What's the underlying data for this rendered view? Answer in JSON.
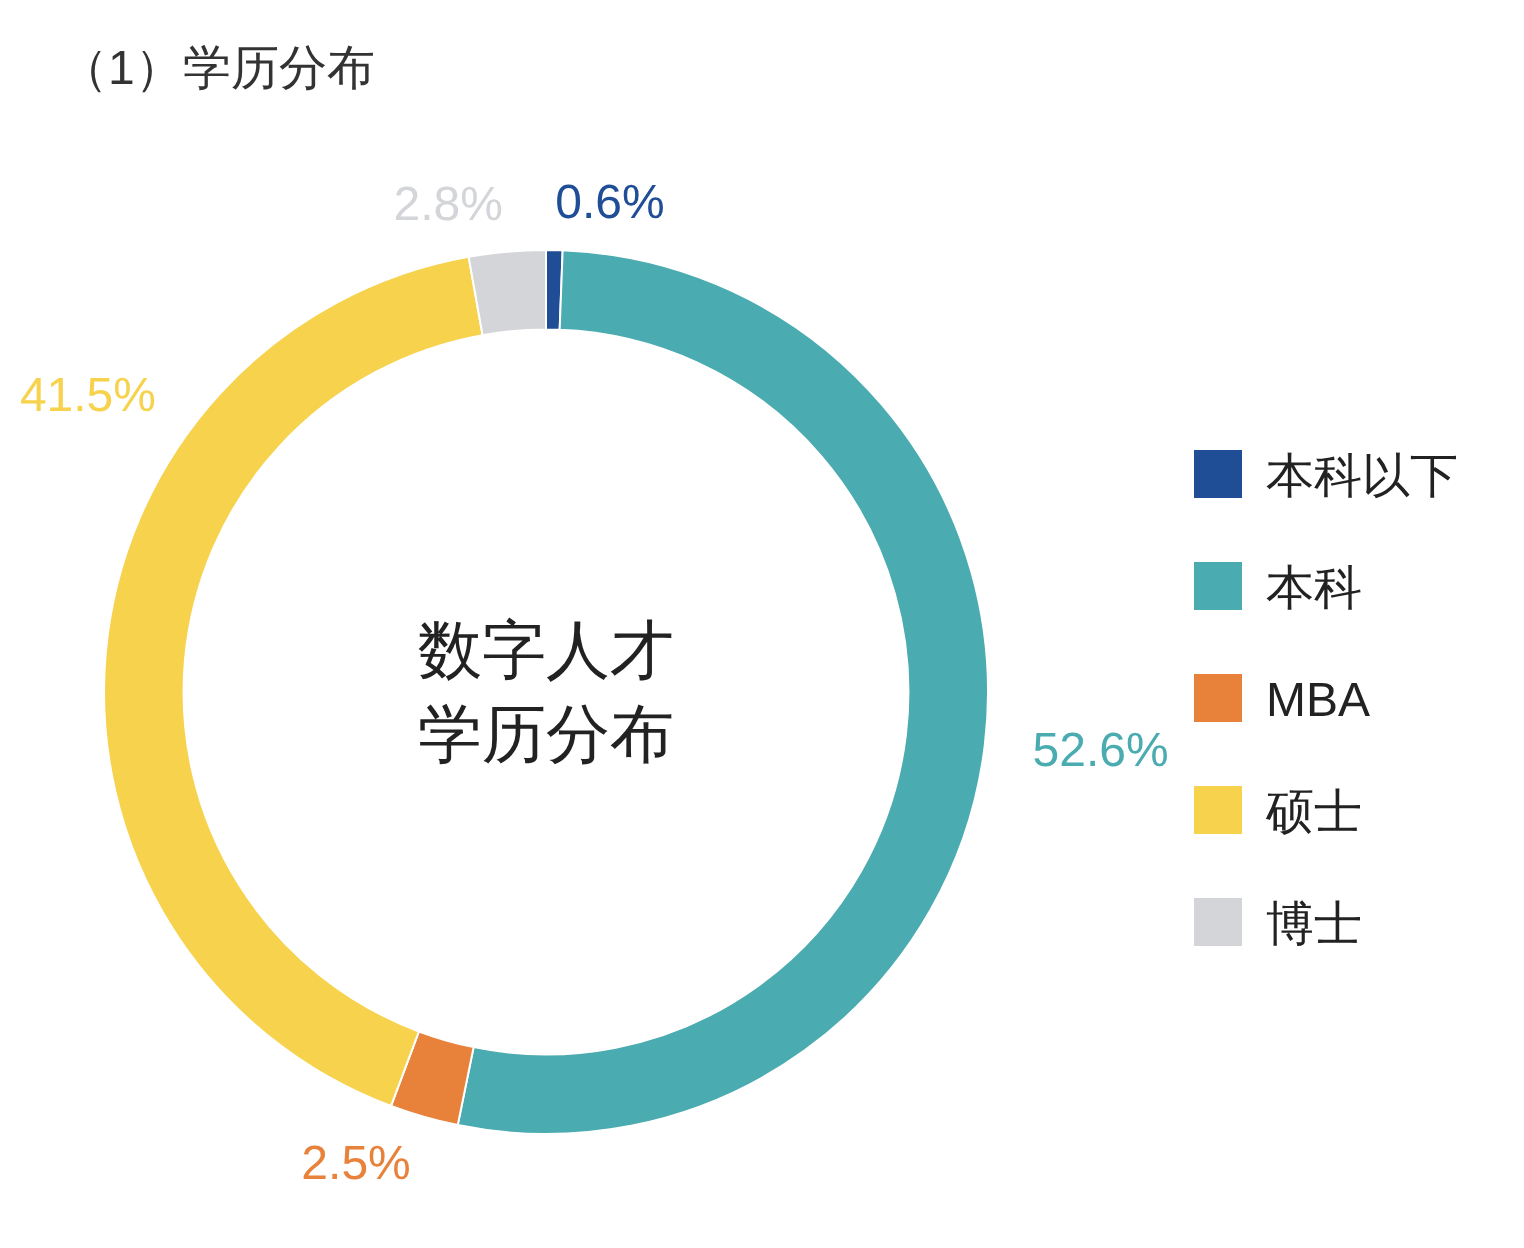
{
  "chart_data": {
    "type": "donut",
    "title": "（1）学历分布",
    "annotations": [
      "数字人才",
      "学历分布"
    ],
    "categories": [
      "本科以下",
      "本科",
      "MBA",
      "硕士",
      "博士"
    ],
    "values": [
      0.6,
      52.6,
      2.5,
      41.5,
      2.8
    ],
    "value_labels": [
      "0.6%",
      "52.6%",
      "2.5%",
      "41.5%",
      "2.8%"
    ],
    "colors": [
      "#1f4e96",
      "#4aabb0",
      "#e8823a",
      "#f6d24d",
      "#d3d5d9"
    ],
    "legend": "right"
  }
}
